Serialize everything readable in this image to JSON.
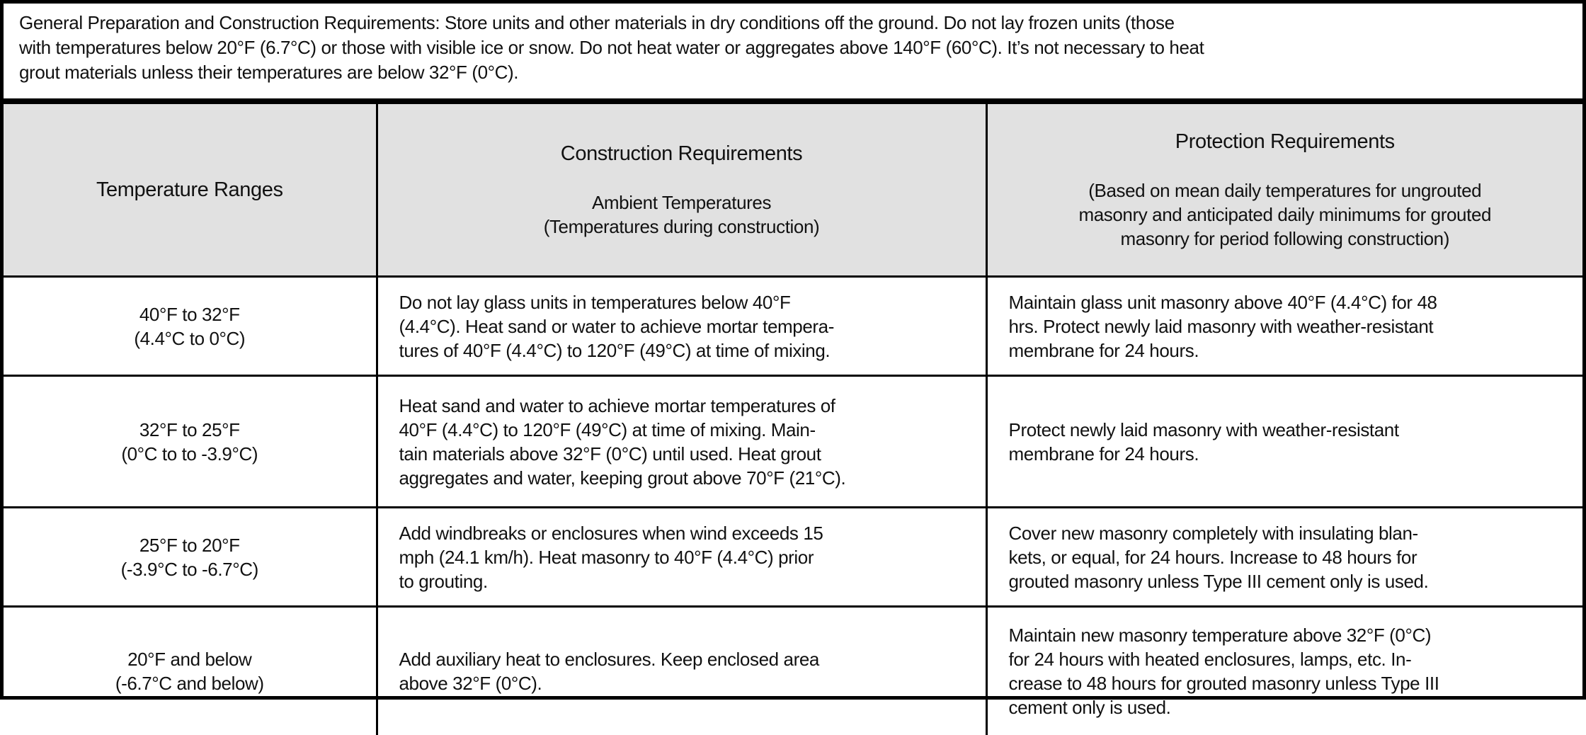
{
  "general": "General Preparation and Construction Requirements:  Store units and other materials in dry conditions off the ground.  Do not lay frozen units (those\nwith temperatures below 20°F (6.7°C) or those with visible ice or snow.  Do not heat water or aggregates above 140°F (60°C). It’s not necessary to heat\ngrout materials unless their temperatures are below 32°F (0°C).",
  "headers": {
    "col1": "Temperature Ranges",
    "col2_title": "Construction Requirements",
    "col2_sub": "Ambient Temperatures\n(Temperatures during construction)",
    "col3_title": "Protection Requirements",
    "col3_sub": "(Based on mean daily temperatures for ungrouted\nmasonry and anticipated daily minimums for grouted\nmasonry for period following construction)"
  },
  "rows": [
    {
      "range": "40°F to 32°F\n(4.4°C to 0°C)",
      "construction": "Do not lay glass units in temperatures below 40°F\n(4.4°C).  Heat sand or water to achieve mortar tempera-\ntures of 40°F (4.4°C) to 120°F (49°C) at time of mixing.",
      "protection": "Maintain glass unit masonry above 40°F (4.4°C)  for 48\nhrs.  Protect newly laid masonry with weather-resistant\nmembrane for 24 hours."
    },
    {
      "range": "32°F to 25°F\n(0°C to to -3.9°C)",
      "construction": "Heat sand  and water to achieve mortar temperatures of\n 40°F (4.4°C) to 120°F (49°C) at time of mixing.  Main-\ntain materials above 32°F (0°C) until used.  Heat grout\naggregates and water, keeping grout above 70°F (21°C).",
      "protection": "Protect newly laid masonry with weather-resistant\nmembrane for 24 hours."
    },
    {
      "range": "25°F to 20°F\n(-3.9°C to -6.7°C)",
      "construction": "Add windbreaks or enclosures when wind exceeds 15\nmph (24.1 km/h).  Heat masonry to 40°F (4.4°C) prior\nto grouting.",
      "protection": "Cover new masonry completely with insulating blan-\nkets, or equal, for 24 hours.  Increase to 48 hours for\ngrouted masonry unless Type III cement only is used."
    },
    {
      "range": "20°F and below\n(-6.7°C and below)",
      "construction": "Add auxiliary heat to enclosures.  Keep enclosed area\nabove  32°F (0°C).",
      "protection": "Maintain new masonry temperature above 32°F (0°C)\nfor 24 hours with heated enclosures, lamps, etc.  In-\ncrease to 48 hours for grouted masonry unless Type III\ncement only is used."
    }
  ]
}
